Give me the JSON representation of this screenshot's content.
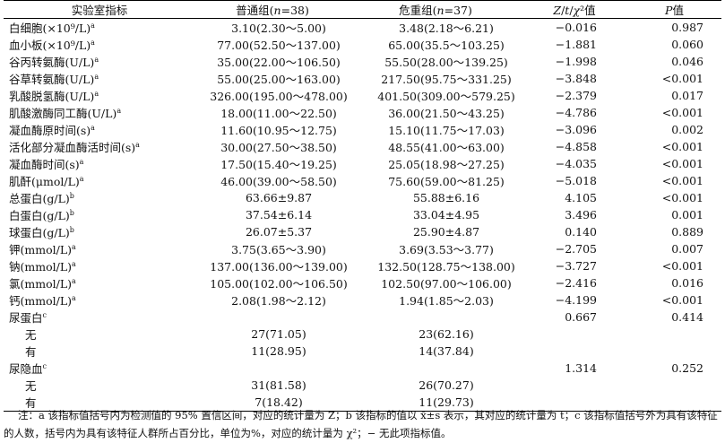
{
  "header": {
    "col1": "实验室指标",
    "col2": "普通组(n=38)",
    "col3": "危重组(n=37)",
    "col4": "Z/t/χ²值",
    "col5": "P值"
  },
  "rows": [
    {
      "name": "白细胞(×10⁹/L)",
      "sup": "a",
      "normal": "3.10(2.30～5.00)",
      "severe": "3.48(2.18～6.21)",
      "stat": "−0.016",
      "p": "0.987"
    },
    {
      "name": "血小板(×10⁹/L)",
      "sup": "a",
      "normal": "77.00(52.50～137.00)",
      "severe": "65.00(35.5～103.25)",
      "stat": "−1.881",
      "p": "0.060"
    },
    {
      "name": "谷丙转氨酶(U/L)",
      "sup": "a",
      "normal": "35.00(22.00～106.50)",
      "severe": "55.50(28.00～139.25)",
      "stat": "−1.998",
      "p": "0.046"
    },
    {
      "name": "谷草转氨酶(U/L)",
      "sup": "a",
      "normal": "55.00(25.00～163.00)",
      "severe": "217.50(95.75～331.25)",
      "stat": "−3.848",
      "p": "<0.001"
    },
    {
      "name": "乳酸脱氢酶(U/L)",
      "sup": "a",
      "normal": "326.00(195.00～478.00)",
      "severe": "401.50(309.00～579.25)",
      "stat": "−2.379",
      "p": "0.017"
    },
    {
      "name": "肌酸激酶同工酶(U/L)",
      "sup": "a",
      "normal": "18.00(11.00～22.50)",
      "severe": "36.00(21.50～43.25)",
      "stat": "−4.786",
      "p": "<0.001"
    },
    {
      "name": "凝血酶原时间(s)",
      "sup": "a",
      "normal": "11.60(10.95～12.75)",
      "severe": "15.10(11.75～17.03)",
      "stat": "−3.096",
      "p": "0.002"
    },
    {
      "name": "活化部分凝血酶活时间(s)",
      "sup": "a",
      "normal": "30.00(27.50～38.50)",
      "severe": "48.55(41.00～63.00)",
      "stat": "−4.858",
      "p": "<0.001"
    },
    {
      "name": "凝血酶时间(s)",
      "sup": "a",
      "normal": "17.50(15.40～19.25)",
      "severe": "25.05(18.98～27.25)",
      "stat": "−4.035",
      "p": "<0.001"
    },
    {
      "name": "肌酐(μmol/L)",
      "sup": "a",
      "normal": "46.00(39.00～58.50)",
      "severe": "75.60(59.00～81.25)",
      "stat": "−5.018",
      "p": "<0.001"
    },
    {
      "name": "总蛋白(g/L)",
      "sup": "b",
      "normal": "63.66±9.87",
      "severe": "55.88±6.16",
      "stat": "4.105",
      "p": "<0.001"
    },
    {
      "name": "白蛋白(g/L)",
      "sup": "b",
      "normal": "37.54±6.14",
      "severe": "33.04±4.95",
      "stat": "3.496",
      "p": "0.001"
    },
    {
      "name": "球蛋白(g/L)",
      "sup": "b",
      "normal": "26.07±5.37",
      "severe": "25.90±4.87",
      "stat": "0.140",
      "p": "0.889"
    },
    {
      "name": "钾(mmol/L)",
      "sup": "a",
      "normal": "3.75(3.65～3.90)",
      "severe": "3.69(3.53～3.77)",
      "stat": "−2.705",
      "p": "0.007"
    },
    {
      "name": "钠(mmol/L)",
      "sup": "a",
      "normal": "137.00(136.00～139.00)",
      "severe": "132.50(128.75～138.00)",
      "stat": "−3.727",
      "p": "<0.001"
    },
    {
      "name": "氯(mmol/L)",
      "sup": "a",
      "normal": "105.00(102.00～106.50)",
      "severe": "102.50(97.00～106.00)",
      "stat": "−2.416",
      "p": "0.016"
    },
    {
      "name": "钙(mmol/L)",
      "sup": "a",
      "normal": "2.08(1.98～2.12)",
      "severe": "1.94(1.85～2.03)",
      "stat": "−4.199",
      "p": "<0.001"
    },
    {
      "name": "尿蛋白",
      "sup": "c",
      "normal": "",
      "severe": "",
      "stat": "0.667",
      "p": "0.414"
    },
    {
      "name": "无",
      "sub": true,
      "sup": "",
      "normal": "27(71.05)",
      "severe": "23(62.16)",
      "stat": "",
      "p": ""
    },
    {
      "name": "有",
      "sub": true,
      "sup": "",
      "normal": "11(28.95)",
      "severe": "14(37.84)",
      "stat": "",
      "p": ""
    },
    {
      "name": "尿隐血",
      "sup": "c",
      "normal": "",
      "severe": "",
      "stat": "1.314",
      "p": "0.252"
    },
    {
      "name": "无",
      "sub": true,
      "sup": "",
      "normal": "31(81.58)",
      "severe": "26(70.27)",
      "stat": "",
      "p": ""
    },
    {
      "name": "有",
      "sub": true,
      "sup": "",
      "normal": "7(18.42)",
      "severe": "11(29.73)",
      "stat": "",
      "p": ""
    }
  ],
  "note": "注：a 该指标值括号内为检测值的 95% 置信区间，对应的统计量为 Z；b 该指标的值以 x̄±s 表示，其对应的统计量为 t；c 该指标值括号外为具有该特征的人数，括号内为具有该特征人群所占百分比，单位为%，对应的统计量为 χ²；− 无此项指标值。"
}
